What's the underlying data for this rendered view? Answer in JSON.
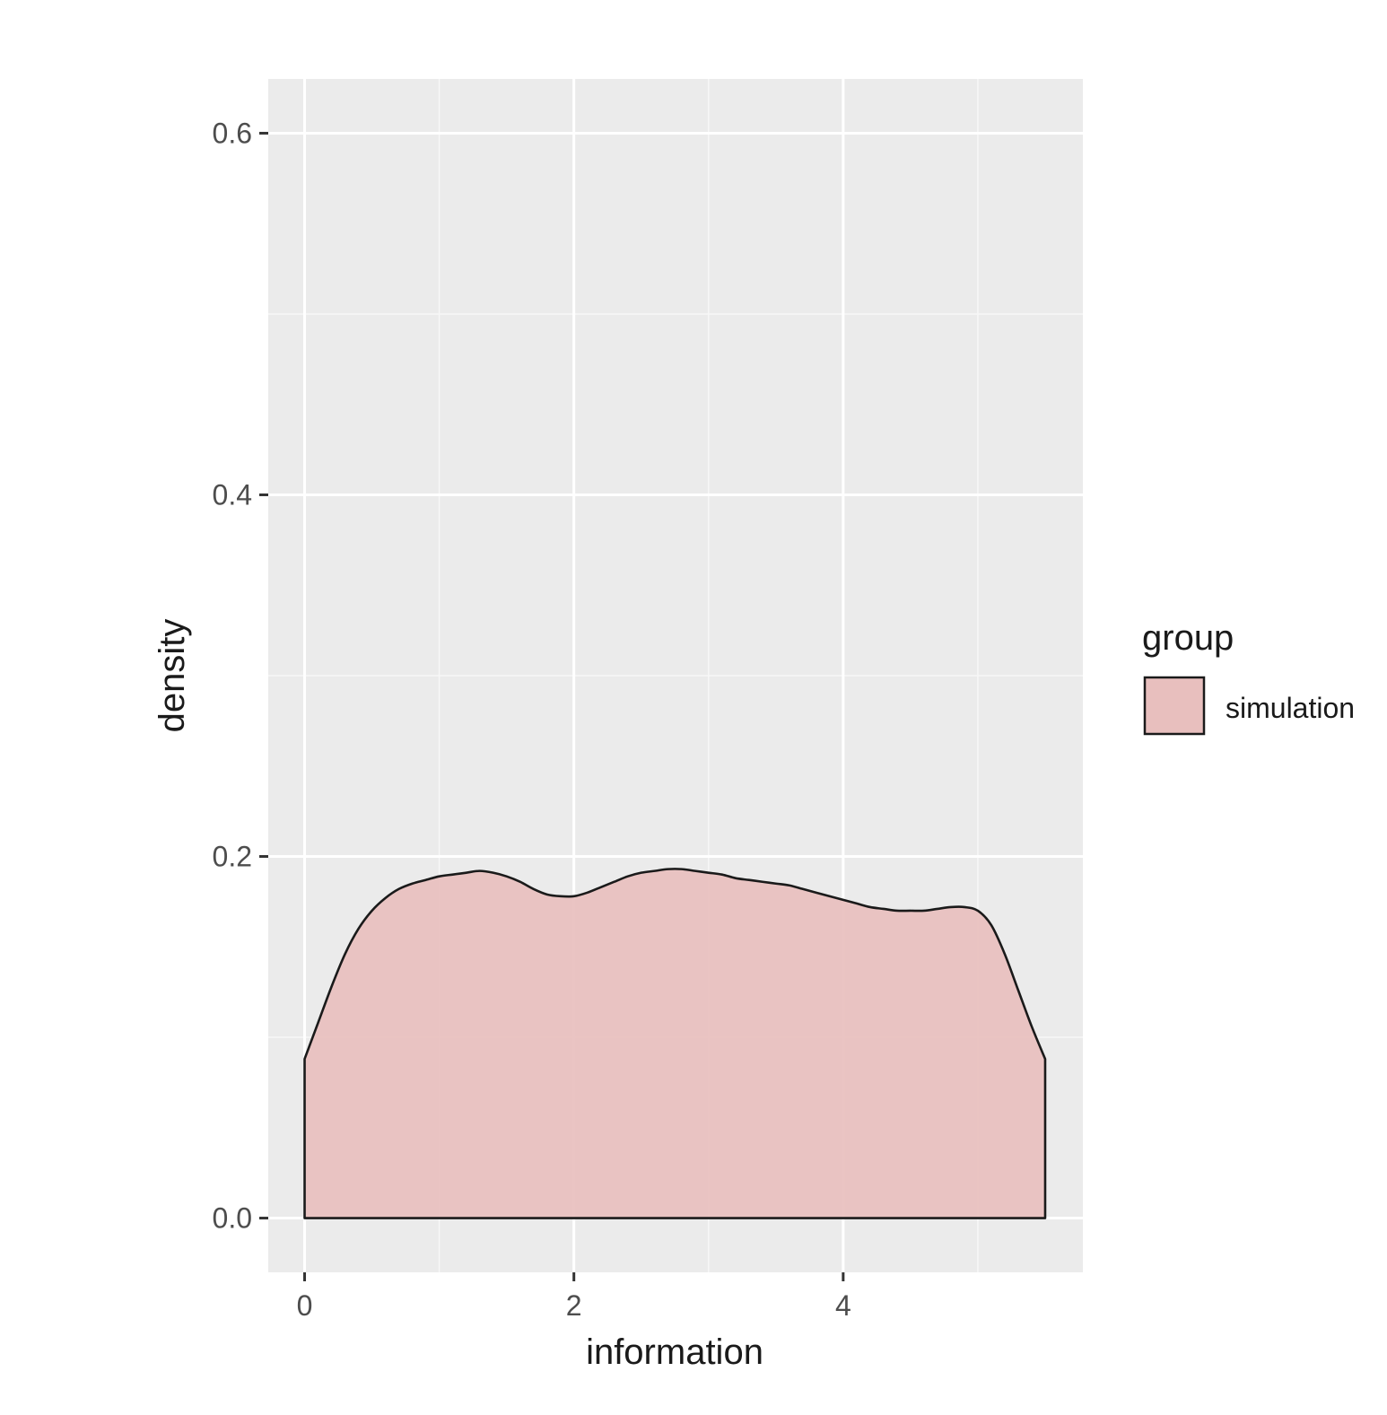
{
  "chart_data": {
    "type": "area",
    "subtype": "density",
    "title": "",
    "xlabel": "information",
    "ylabel": "density",
    "xlim": [
      -0.27,
      5.78
    ],
    "ylim": [
      -0.03,
      0.63
    ],
    "x_ticks": [
      0,
      2,
      4
    ],
    "x_tick_labels": [
      "0",
      "2",
      "4"
    ],
    "x_minor_ticks": [
      1,
      3,
      5
    ],
    "y_ticks": [
      0.0,
      0.2,
      0.4,
      0.6
    ],
    "y_tick_labels": [
      "0.0",
      "0.2",
      "0.4",
      "0.6"
    ],
    "y_minor_ticks": [
      0.1,
      0.3,
      0.5
    ],
    "grid": true,
    "legend": {
      "title": "group",
      "position": "right",
      "entries": [
        "simulation"
      ]
    },
    "series": [
      {
        "name": "simulation",
        "fill": "#e8bfbe",
        "stroke": "#1a1a1a",
        "x": [
          0.0,
          0.1,
          0.2,
          0.3,
          0.4,
          0.5,
          0.6,
          0.7,
          0.8,
          0.9,
          1.0,
          1.1,
          1.2,
          1.3,
          1.4,
          1.5,
          1.6,
          1.7,
          1.8,
          1.9,
          2.0,
          2.1,
          2.2,
          2.3,
          2.4,
          2.5,
          2.6,
          2.7,
          2.8,
          2.9,
          3.0,
          3.1,
          3.2,
          3.3,
          3.4,
          3.5,
          3.6,
          3.7,
          3.8,
          3.9,
          4.0,
          4.1,
          4.2,
          4.3,
          4.4,
          4.5,
          4.6,
          4.7,
          4.8,
          4.9,
          5.0,
          5.1,
          5.2,
          5.3,
          5.4,
          5.5
        ],
        "y": [
          0.088,
          0.108,
          0.128,
          0.146,
          0.16,
          0.17,
          0.177,
          0.182,
          0.185,
          0.187,
          0.189,
          0.19,
          0.191,
          0.192,
          0.191,
          0.189,
          0.186,
          0.182,
          0.179,
          0.178,
          0.178,
          0.18,
          0.183,
          0.186,
          0.189,
          0.191,
          0.192,
          0.193,
          0.193,
          0.192,
          0.191,
          0.19,
          0.188,
          0.187,
          0.186,
          0.185,
          0.184,
          0.182,
          0.18,
          0.178,
          0.176,
          0.174,
          0.172,
          0.171,
          0.17,
          0.17,
          0.17,
          0.171,
          0.172,
          0.172,
          0.17,
          0.162,
          0.146,
          0.126,
          0.106,
          0.088
        ]
      }
    ]
  }
}
